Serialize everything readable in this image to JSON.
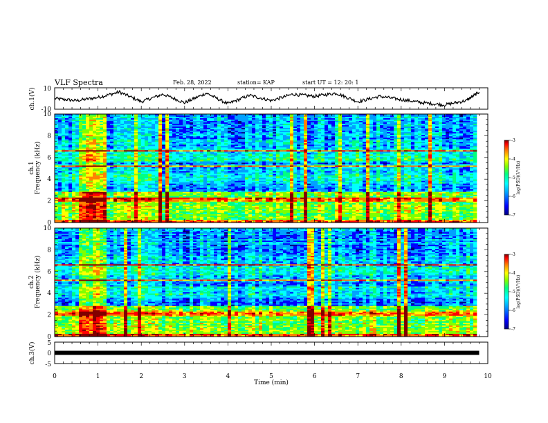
{
  "header": {
    "title": "VLF Spectra",
    "date": "Feb. 28, 2022",
    "station": "station= KAP",
    "start": "start  UT =   12: 20: 1"
  },
  "colors": {
    "frame": "#000000",
    "colormap": [
      "#000080",
      "#0000ff",
      "#00a0ff",
      "#00ffff",
      "#00ff80",
      "#7fff00",
      "#ffff00",
      "#ff8000",
      "#ff0000",
      "#800000"
    ]
  },
  "chart_data": [
    {
      "type": "line",
      "name": "ch1-waveform",
      "ylabel": "ch.1(V)",
      "ylim": [
        -10,
        10
      ],
      "yticks": [
        "10",
        "-10"
      ],
      "x": [
        0,
        0.5,
        1.0,
        1.5,
        2.0,
        2.5,
        3.0,
        3.5,
        4.0,
        4.5,
        5.0,
        5.5,
        6.0,
        6.5,
        7.0,
        7.5,
        8.0,
        8.5,
        9.0,
        9.5,
        9.8
      ],
      "values": [
        0,
        -2,
        1,
        6,
        -3,
        4,
        -4,
        5,
        -5,
        3,
        -2,
        4,
        2,
        5,
        -3,
        2,
        -1,
        -4,
        -6,
        -2,
        6
      ]
    },
    {
      "type": "heatmap",
      "name": "ch1-spectrogram",
      "ylabel": "Frequency (kHz)",
      "channel_label": "ch.1",
      "ylim": [
        0,
        10
      ],
      "yticks": [
        "0",
        "2",
        "4",
        "6",
        "8",
        "10"
      ],
      "xlim": [
        0,
        10
      ],
      "colorbar": {
        "label": "log(PSD)(V²/Hz)",
        "range": [
          -7,
          -3
        ],
        "ticks": [
          "-3",
          "-4",
          "-5",
          "-6",
          "-7"
        ]
      }
    },
    {
      "type": "heatmap",
      "name": "ch2-spectrogram",
      "ylabel": "Frequency (kHz)",
      "channel_label": "ch.2",
      "ylim": [
        0,
        10
      ],
      "yticks": [
        "0",
        "2",
        "4",
        "6",
        "8",
        "10"
      ],
      "xlim": [
        0,
        10
      ],
      "colorbar": {
        "label": "log(PSD)(V²/Hz)",
        "range": [
          -7,
          -3
        ],
        "ticks": [
          "-3",
          "-4",
          "-5",
          "-6",
          "-7"
        ]
      }
    },
    {
      "type": "line",
      "name": "ch3-signal",
      "ylabel": "ch.3(V)",
      "ylim": [
        -5,
        5
      ],
      "yticks": [
        "5",
        "0",
        "-5"
      ],
      "x": [
        0,
        9.8
      ],
      "values": [
        0,
        0
      ]
    }
  ],
  "xaxis": {
    "label": "Time (min)",
    "ticks": [
      "0",
      "1",
      "2",
      "3",
      "4",
      "5",
      "6",
      "7",
      "8",
      "9",
      "10"
    ],
    "range": [
      0,
      10
    ]
  }
}
